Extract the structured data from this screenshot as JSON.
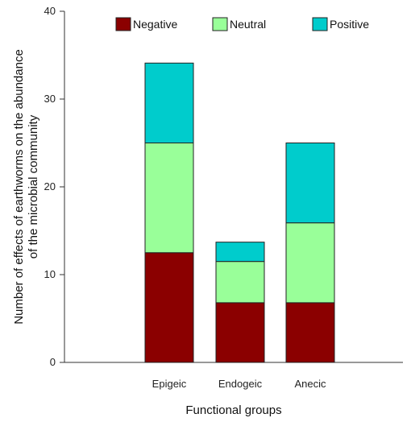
{
  "chart_data": {
    "type": "bar",
    "stacked": true,
    "categories": [
      "Epigeic",
      "Endogeic",
      "Anecic"
    ],
    "series": [
      {
        "name": "Negative",
        "color": "#8b0000",
        "values": [
          12.5,
          6.8,
          6.8
        ]
      },
      {
        "name": "Neutral",
        "color": "#99ff99",
        "values": [
          12.5,
          4.7,
          9.1
        ]
      },
      {
        "name": "Positive",
        "color": "#00cccc",
        "values": [
          9.1,
          2.2,
          9.1
        ]
      }
    ],
    "xlabel": "Functional groups",
    "ylabel_lines": [
      "Number of effects of earthworms on the abundance",
      "of the microbial community"
    ],
    "ylim": [
      0,
      40
    ],
    "yticks": [
      0,
      10,
      20,
      30,
      40
    ],
    "legend_position": "top",
    "grid": false
  }
}
